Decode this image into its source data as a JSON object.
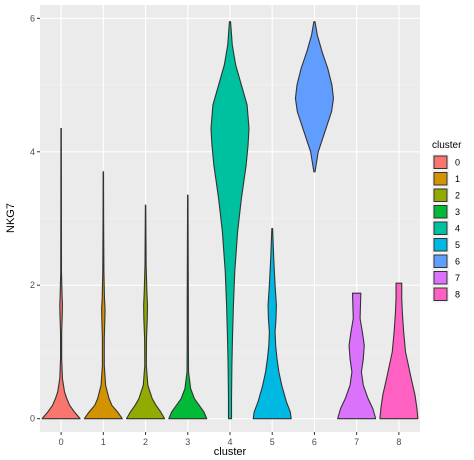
{
  "chart_data": {
    "type": "violin",
    "xlabel": "cluster",
    "ylabel": "NKG7",
    "ylim": [
      -0.2,
      6.2
    ],
    "yticks": [
      0,
      2,
      4,
      6
    ],
    "categories": [
      "0",
      "1",
      "2",
      "3",
      "4",
      "5",
      "6",
      "7",
      "8"
    ],
    "legend": {
      "title": "cluster",
      "position": "right"
    },
    "grid": true,
    "series": [
      {
        "cluster": "0",
        "color": "#F8766D",
        "profile": [
          [
            0.0,
            1.0
          ],
          [
            0.1,
            0.7
          ],
          [
            0.2,
            0.45
          ],
          [
            0.3,
            0.3
          ],
          [
            0.4,
            0.18
          ],
          [
            0.6,
            0.07
          ],
          [
            0.9,
            0.03
          ],
          [
            1.3,
            0.03
          ],
          [
            1.55,
            0.06
          ],
          [
            1.7,
            0.07
          ],
          [
            1.85,
            0.05
          ],
          [
            2.2,
            0.02
          ],
          [
            3.0,
            0.015
          ],
          [
            4.35,
            0.01
          ]
        ]
      },
      {
        "cluster": "1",
        "color": "#D39200",
        "profile": [
          [
            0.0,
            1.0
          ],
          [
            0.1,
            0.75
          ],
          [
            0.2,
            0.45
          ],
          [
            0.3,
            0.3
          ],
          [
            0.5,
            0.12
          ],
          [
            0.8,
            0.05
          ],
          [
            1.2,
            0.05
          ],
          [
            1.5,
            0.08
          ],
          [
            1.65,
            0.09
          ],
          [
            1.8,
            0.06
          ],
          [
            2.2,
            0.03
          ],
          [
            3.0,
            0.015
          ],
          [
            3.7,
            0.01
          ]
        ]
      },
      {
        "cluster": "2",
        "color": "#93AA00",
        "profile": [
          [
            0.0,
            1.0
          ],
          [
            0.1,
            0.8
          ],
          [
            0.2,
            0.55
          ],
          [
            0.3,
            0.35
          ],
          [
            0.5,
            0.12
          ],
          [
            0.8,
            0.04
          ],
          [
            1.2,
            0.05
          ],
          [
            1.5,
            0.09
          ],
          [
            1.7,
            0.1
          ],
          [
            1.9,
            0.07
          ],
          [
            2.3,
            0.03
          ],
          [
            3.2,
            0.01
          ]
        ]
      },
      {
        "cluster": "3",
        "color": "#00BA38",
        "profile": [
          [
            0.0,
            1.0
          ],
          [
            0.1,
            0.85
          ],
          [
            0.2,
            0.6
          ],
          [
            0.3,
            0.35
          ],
          [
            0.45,
            0.15
          ],
          [
            0.7,
            0.04
          ],
          [
            1.2,
            0.03
          ],
          [
            1.7,
            0.03
          ],
          [
            2.5,
            0.02
          ],
          [
            3.35,
            0.01
          ]
        ]
      },
      {
        "cluster": "4",
        "color": "#00C19F",
        "profile": [
          [
            0.0,
            0.08
          ],
          [
            0.3,
            0.08
          ],
          [
            0.8,
            0.1
          ],
          [
            1.2,
            0.13
          ],
          [
            1.7,
            0.18
          ],
          [
            2.2,
            0.25
          ],
          [
            2.8,
            0.4
          ],
          [
            3.3,
            0.6
          ],
          [
            3.8,
            0.85
          ],
          [
            4.1,
            0.95
          ],
          [
            4.35,
            1.0
          ],
          [
            4.7,
            0.9
          ],
          [
            5.0,
            0.6
          ],
          [
            5.3,
            0.3
          ],
          [
            5.6,
            0.12
          ],
          [
            5.95,
            0.03
          ]
        ]
      },
      {
        "cluster": "5",
        "color": "#00B9E3",
        "profile": [
          [
            0.0,
            1.0
          ],
          [
            0.1,
            0.95
          ],
          [
            0.25,
            0.75
          ],
          [
            0.5,
            0.5
          ],
          [
            0.7,
            0.35
          ],
          [
            0.9,
            0.25
          ],
          [
            1.1,
            0.18
          ],
          [
            1.3,
            0.15
          ],
          [
            1.5,
            0.2
          ],
          [
            1.7,
            0.22
          ],
          [
            2.0,
            0.15
          ],
          [
            2.4,
            0.08
          ],
          [
            2.85,
            0.02
          ]
        ]
      },
      {
        "cluster": "6",
        "color": "#619CFF",
        "profile": [
          [
            3.7,
            0.03
          ],
          [
            4.0,
            0.2
          ],
          [
            4.3,
            0.55
          ],
          [
            4.6,
            0.9
          ],
          [
            4.8,
            1.0
          ],
          [
            5.0,
            0.92
          ],
          [
            5.25,
            0.7
          ],
          [
            5.5,
            0.4
          ],
          [
            5.75,
            0.15
          ],
          [
            5.95,
            0.03
          ]
        ]
      },
      {
        "cluster": "7",
        "color": "#DB72FB",
        "profile": [
          [
            0.0,
            1.0
          ],
          [
            0.15,
            0.85
          ],
          [
            0.3,
            0.6
          ],
          [
            0.5,
            0.35
          ],
          [
            0.7,
            0.25
          ],
          [
            0.9,
            0.35
          ],
          [
            1.1,
            0.4
          ],
          [
            1.3,
            0.3
          ],
          [
            1.5,
            0.18
          ],
          [
            1.7,
            0.2
          ],
          [
            1.88,
            0.22
          ]
        ]
      },
      {
        "cluster": "8",
        "color": "#FF61C3",
        "profile": [
          [
            0.0,
            1.0
          ],
          [
            0.15,
            0.95
          ],
          [
            0.35,
            0.85
          ],
          [
            0.6,
            0.65
          ],
          [
            0.8,
            0.5
          ],
          [
            1.0,
            0.35
          ],
          [
            1.3,
            0.25
          ],
          [
            1.6,
            0.18
          ],
          [
            1.8,
            0.15
          ],
          [
            2.03,
            0.15
          ]
        ]
      }
    ]
  }
}
